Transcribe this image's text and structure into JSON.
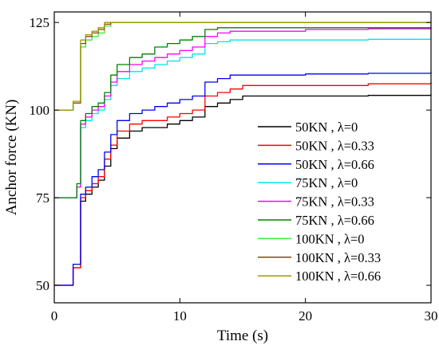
{
  "chart_data": {
    "type": "line",
    "xlabel": "Time (s)",
    "ylabel": "Anchor force (KN)",
    "xlim": [
      0,
      30
    ],
    "ylim": [
      45,
      128
    ],
    "xticks": [
      0,
      10,
      20,
      30
    ],
    "yticks": [
      50,
      75,
      100,
      125
    ],
    "grid": false,
    "legend_position": "right",
    "series": [
      {
        "name": "50KN , λ=0",
        "color": "#000000",
        "points": [
          [
            0,
            50
          ],
          [
            1.3,
            50
          ],
          [
            1.5,
            55
          ],
          [
            1.9,
            55
          ],
          [
            2.1,
            74
          ],
          [
            2.5,
            76
          ],
          [
            3,
            78
          ],
          [
            3.5,
            80
          ],
          [
            4,
            84
          ],
          [
            4.5,
            89
          ],
          [
            5,
            92
          ],
          [
            6,
            94
          ],
          [
            7,
            95
          ],
          [
            8,
            95
          ],
          [
            9,
            96
          ],
          [
            10,
            97
          ],
          [
            11,
            98
          ],
          [
            12,
            101
          ],
          [
            13,
            102
          ],
          [
            14,
            103
          ],
          [
            15,
            104
          ],
          [
            20,
            104
          ],
          [
            25,
            104.2
          ],
          [
            30,
            104.5
          ]
        ]
      },
      {
        "name": "50KN , λ=0.33",
        "color": "#ff0000",
        "points": [
          [
            0,
            50
          ],
          [
            1.3,
            50
          ],
          [
            1.5,
            55
          ],
          [
            1.9,
            55
          ],
          [
            2.1,
            75
          ],
          [
            2.5,
            77
          ],
          [
            3,
            79
          ],
          [
            3.5,
            81
          ],
          [
            4,
            86
          ],
          [
            4.5,
            90
          ],
          [
            5,
            94
          ],
          [
            6,
            96
          ],
          [
            7,
            97
          ],
          [
            8,
            97
          ],
          [
            9,
            98
          ],
          [
            10,
            99
          ],
          [
            11,
            100
          ],
          [
            12,
            104
          ],
          [
            13,
            105
          ],
          [
            14,
            106
          ],
          [
            15,
            107
          ],
          [
            20,
            107
          ],
          [
            25,
            107.5
          ],
          [
            30,
            108
          ]
        ]
      },
      {
        "name": "50KN , λ=0.66",
        "color": "#0000ff",
        "points": [
          [
            0,
            50
          ],
          [
            1.3,
            50
          ],
          [
            1.5,
            56
          ],
          [
            1.9,
            56
          ],
          [
            2.1,
            76
          ],
          [
            2.5,
            78
          ],
          [
            3,
            81
          ],
          [
            3.5,
            83
          ],
          [
            4,
            88
          ],
          [
            4.5,
            93
          ],
          [
            5,
            97
          ],
          [
            6,
            99
          ],
          [
            7,
            100
          ],
          [
            8,
            101
          ],
          [
            9,
            102
          ],
          [
            10,
            103
          ],
          [
            11,
            104
          ],
          [
            12,
            108
          ],
          [
            13,
            109
          ],
          [
            14,
            110
          ],
          [
            15,
            110
          ],
          [
            20,
            110.3
          ],
          [
            25,
            110.5
          ],
          [
            30,
            111
          ]
        ]
      },
      {
        "name": "75KN , λ=0",
        "color": "#00e5e5",
        "points": [
          [
            0,
            75
          ],
          [
            1.5,
            75
          ],
          [
            1.8,
            78
          ],
          [
            2.1,
            95
          ],
          [
            2.5,
            97
          ],
          [
            3,
            99
          ],
          [
            3.5,
            100
          ],
          [
            4,
            103
          ],
          [
            4.5,
            107
          ],
          [
            5,
            109
          ],
          [
            6,
            111
          ],
          [
            7,
            112
          ],
          [
            8,
            113
          ],
          [
            9,
            114
          ],
          [
            10,
            115
          ],
          [
            11,
            116
          ],
          [
            12,
            119
          ],
          [
            13,
            119.5
          ],
          [
            14,
            120
          ],
          [
            20,
            120
          ],
          [
            25,
            120.2
          ],
          [
            30,
            120.5
          ]
        ]
      },
      {
        "name": "75KN , λ=0.33",
        "color": "#ff00ff",
        "points": [
          [
            0,
            75
          ],
          [
            1.5,
            75
          ],
          [
            1.8,
            78
          ],
          [
            2.1,
            96
          ],
          [
            2.5,
            98
          ],
          [
            3,
            100
          ],
          [
            3.5,
            101
          ],
          [
            4,
            104
          ],
          [
            4.5,
            108
          ],
          [
            5,
            111
          ],
          [
            6,
            113
          ],
          [
            7,
            114
          ],
          [
            8,
            115
          ],
          [
            9,
            116
          ],
          [
            10,
            117
          ],
          [
            11,
            118
          ],
          [
            12,
            121
          ],
          [
            13,
            122
          ],
          [
            14,
            122.5
          ],
          [
            20,
            123
          ],
          [
            25,
            123.2
          ],
          [
            30,
            123.5
          ]
        ]
      },
      {
        "name": "75KN , λ=0.66",
        "color": "#008000",
        "points": [
          [
            0,
            75
          ],
          [
            1.5,
            75
          ],
          [
            1.8,
            79
          ],
          [
            2.1,
            97
          ],
          [
            2.5,
            99
          ],
          [
            3,
            101
          ],
          [
            3.5,
            102
          ],
          [
            4,
            105
          ],
          [
            4.5,
            110
          ],
          [
            5,
            113
          ],
          [
            6,
            115
          ],
          [
            7,
            116
          ],
          [
            8,
            118
          ],
          [
            9,
            119
          ],
          [
            10,
            120
          ],
          [
            11,
            121
          ],
          [
            12,
            123
          ],
          [
            13,
            123.5
          ],
          [
            14,
            123.5
          ],
          [
            20,
            123.5
          ],
          [
            25,
            123.5
          ],
          [
            30,
            123.5
          ]
        ]
      },
      {
        "name": "100KN , λ=0",
        "color": "#33ee33",
        "points": [
          [
            0,
            100
          ],
          [
            1.2,
            100
          ],
          [
            1.5,
            102
          ],
          [
            1.9,
            102
          ],
          [
            2.1,
            118
          ],
          [
            2.5,
            120
          ],
          [
            3,
            121
          ],
          [
            3.5,
            122
          ],
          [
            4,
            124
          ],
          [
            4.5,
            125
          ],
          [
            5,
            125
          ],
          [
            10,
            125
          ],
          [
            20,
            125
          ],
          [
            30,
            125
          ]
        ]
      },
      {
        "name": "100KN , λ=0.33",
        "color": "#8b4513",
        "points": [
          [
            0,
            100
          ],
          [
            1.2,
            100
          ],
          [
            1.5,
            102
          ],
          [
            1.9,
            102
          ],
          [
            2.1,
            119
          ],
          [
            2.5,
            121
          ],
          [
            3,
            122
          ],
          [
            3.5,
            123
          ],
          [
            4,
            124.5
          ],
          [
            4.5,
            125
          ],
          [
            5,
            125
          ],
          [
            10,
            125
          ],
          [
            20,
            125
          ],
          [
            30,
            125
          ]
        ]
      },
      {
        "name": "100KN , λ=0.66",
        "color": "#9a9a00",
        "points": [
          [
            0,
            100
          ],
          [
            1.2,
            100
          ],
          [
            1.5,
            102.5
          ],
          [
            1.9,
            102.5
          ],
          [
            2.1,
            120
          ],
          [
            2.5,
            121.5
          ],
          [
            3,
            122.5
          ],
          [
            3.5,
            123.5
          ],
          [
            4,
            125
          ],
          [
            4.5,
            125
          ],
          [
            5,
            125
          ],
          [
            10,
            125
          ],
          [
            20,
            125
          ],
          [
            30,
            125
          ]
        ]
      }
    ]
  }
}
